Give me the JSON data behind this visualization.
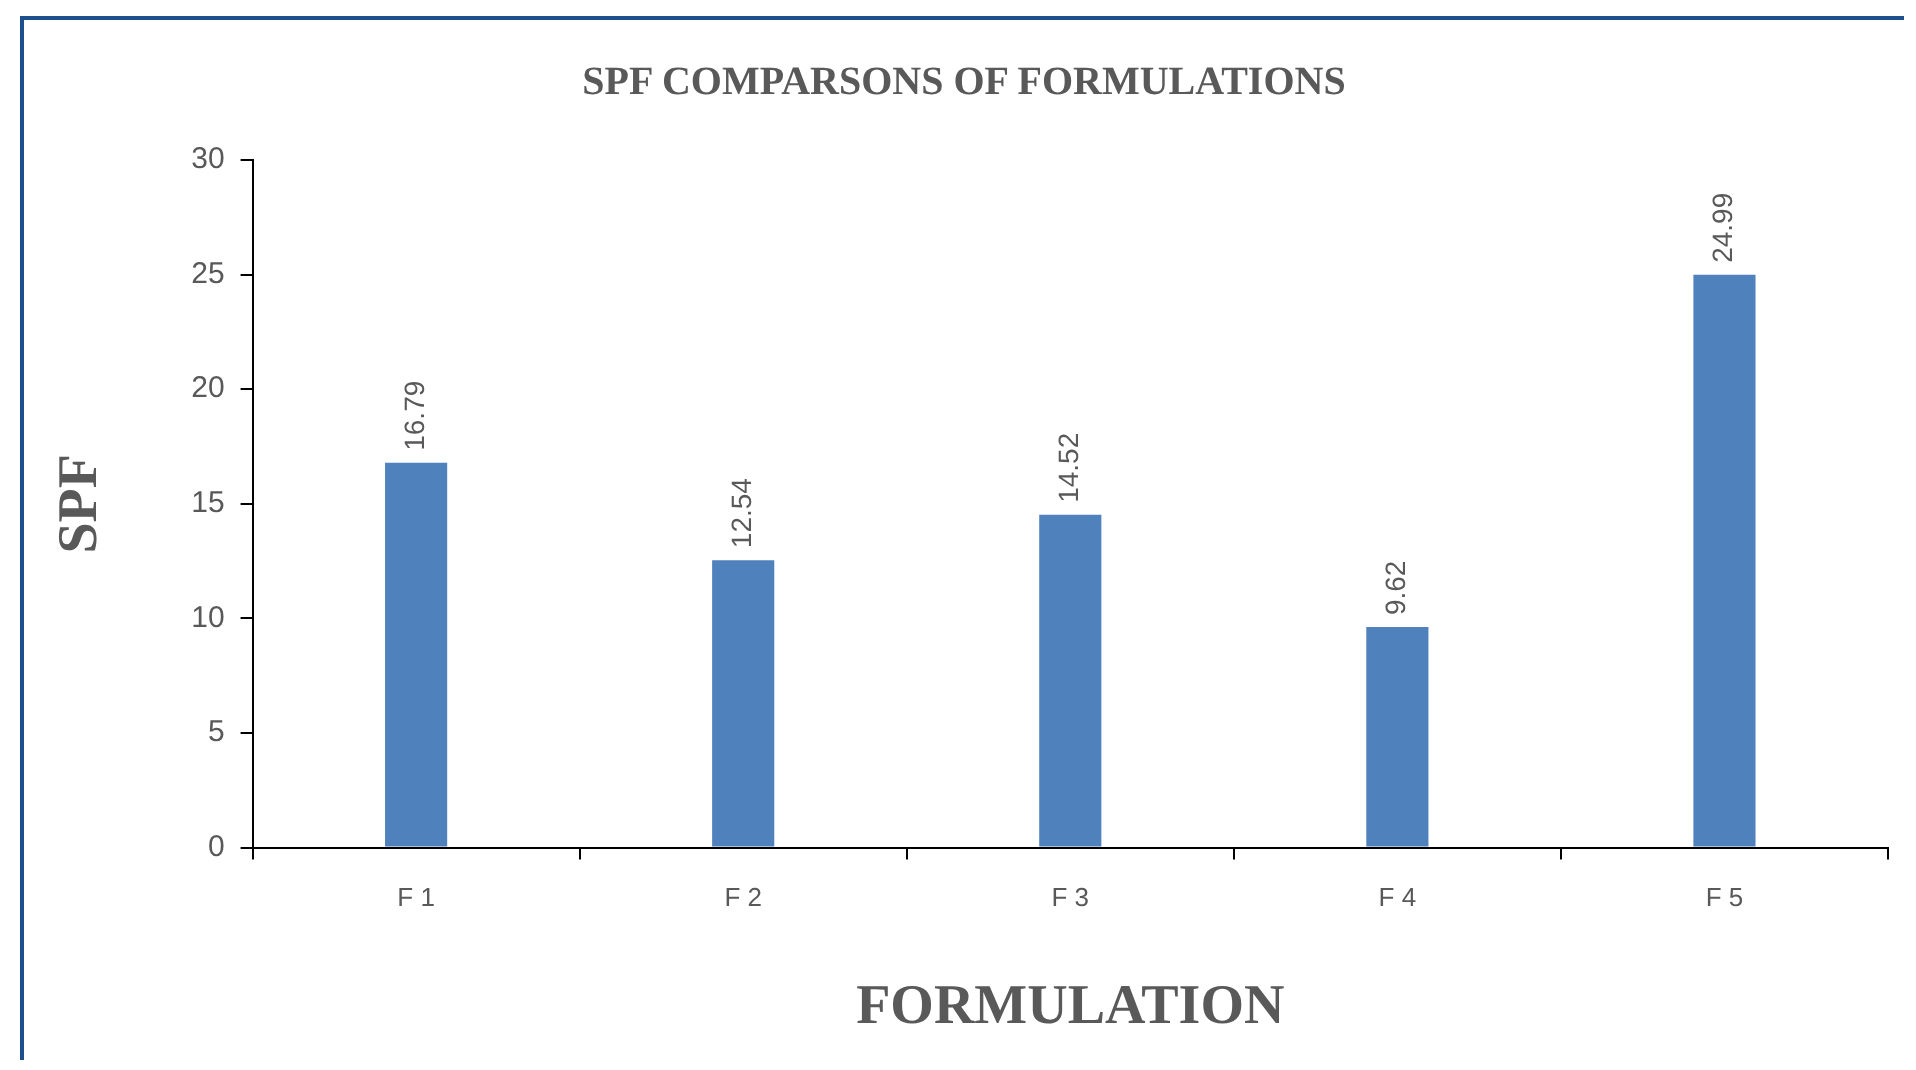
{
  "chart_data": {
    "type": "bar",
    "title": "SPF COMPARSONS OF FORMULATIONS",
    "xlabel": "FORMULATION",
    "ylabel": "SPF",
    "categories": [
      "F 1",
      "F 2",
      "F 3",
      "F 4",
      "F 5"
    ],
    "values": [
      16.79,
      12.54,
      14.52,
      9.62,
      24.99
    ],
    "color": "#4f81bd",
    "ylim": [
      0,
      30
    ],
    "yticks": [
      0,
      5,
      10,
      15,
      20,
      25,
      30
    ],
    "grid": false,
    "legend": false,
    "data_labels": true
  }
}
